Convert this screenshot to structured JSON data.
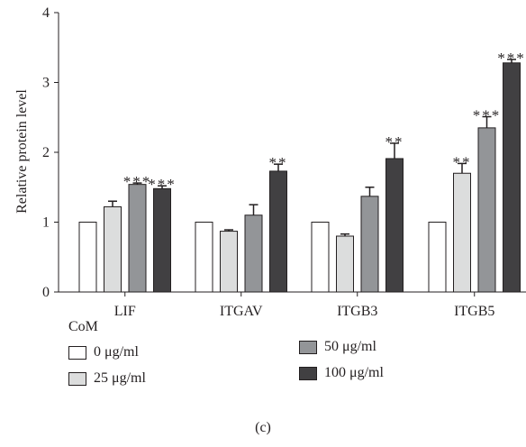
{
  "chart_data": {
    "type": "bar",
    "categories": [
      "LIF",
      "ITGAV",
      "ITGB3",
      "ITGB5"
    ],
    "ylabel": "Relative protein level",
    "ylim": [
      0,
      4
    ],
    "yticks": [
      "0",
      "1",
      "2",
      "3",
      "4"
    ],
    "grid": false,
    "legend_title": "CoM",
    "legend_position": "bottom",
    "series": [
      {
        "name": "0 μg/ml",
        "color": "#ffffff",
        "values": [
          1.0,
          1.0,
          1.0,
          1.0
        ],
        "errors": [
          0,
          0,
          0,
          0
        ],
        "significance": [
          "",
          "",
          "",
          ""
        ]
      },
      {
        "name": "25 μg/ml",
        "color": "#dcdddd",
        "values": [
          1.22,
          0.87,
          0.8,
          1.7
        ],
        "errors": [
          0.08,
          0.02,
          0.03,
          0.14
        ],
        "significance": [
          "",
          "",
          "",
          "**"
        ]
      },
      {
        "name": "50 μg/ml",
        "color": "#939598",
        "values": [
          1.54,
          1.1,
          1.37,
          2.35
        ],
        "errors": [
          0.02,
          0.15,
          0.13,
          0.16
        ],
        "significance": [
          "***",
          "",
          "",
          "***"
        ]
      },
      {
        "name": "100 μg/ml",
        "color": "#414042",
        "values": [
          1.48,
          1.73,
          1.91,
          3.28
        ],
        "errors": [
          0.04,
          0.1,
          0.22,
          0.05
        ],
        "significance": [
          "***",
          "**",
          "**",
          "***"
        ]
      }
    ]
  },
  "panel_label": "(c)"
}
